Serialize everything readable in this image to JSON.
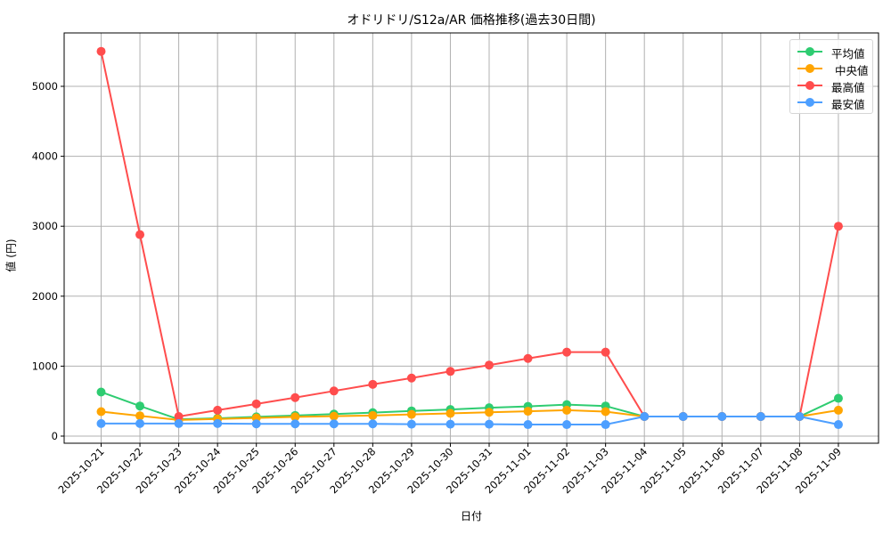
{
  "chart_data": {
    "type": "line",
    "title": "オドリドリ/S12a/AR 価格推移(過去30日間)",
    "xlabel": "日付",
    "ylabel": "値 (円)",
    "ylim": [
      -100,
      5700
    ],
    "yticks": [
      0,
      1000,
      2000,
      3000,
      4000,
      5000
    ],
    "grid": true,
    "legend_position": "upper right",
    "categories": [
      "2025-10-21",
      "2025-10-22",
      "2025-10-23",
      "2025-10-24",
      "2025-10-25",
      "2025-10-26",
      "2025-10-27",
      "2025-10-28",
      "2025-10-29",
      "2025-10-30",
      "2025-10-31",
      "2025-11-01",
      "2025-11-02",
      "2025-11-03",
      "2025-11-04",
      "2025-11-05",
      "2025-11-06",
      "2025-11-07",
      "2025-11-08",
      "2025-11-09"
    ],
    "series": [
      {
        "name": "平均値",
        "color": "#2ecc71",
        "values": [
          630,
          430,
          240,
          255,
          275,
          295,
          315,
          335,
          360,
          380,
          405,
          425,
          450,
          430,
          280,
          280,
          280,
          280,
          280,
          540
        ]
      },
      {
        "name": "中央値",
        "color": "#ffa500",
        "values": [
          350,
          290,
          230,
          245,
          260,
          275,
          285,
          295,
          310,
          325,
          340,
          355,
          370,
          350,
          280,
          280,
          280,
          280,
          280,
          370
        ]
      },
      {
        "name": "最高値",
        "color": "#ff4d4d",
        "values": [
          5500,
          2880,
          280,
          370,
          460,
          550,
          645,
          740,
          830,
          925,
          1015,
          1110,
          1200,
          1200,
          280,
          280,
          280,
          280,
          280,
          3000
        ]
      },
      {
        "name": "最安値",
        "color": "#4d9fff",
        "values": [
          180,
          180,
          180,
          180,
          175,
          175,
          175,
          175,
          170,
          170,
          170,
          165,
          165,
          165,
          280,
          280,
          280,
          280,
          280,
          165
        ]
      }
    ]
  },
  "legend": {
    "items": [
      {
        "label": "平均値",
        "color": "#2ecc71"
      },
      {
        "label": " 中央値",
        "color": "#ffa500"
      },
      {
        "label": "最高値",
        "color": "#ff4d4d"
      },
      {
        "label": "最安値",
        "color": "#4d9fff"
      }
    ]
  }
}
